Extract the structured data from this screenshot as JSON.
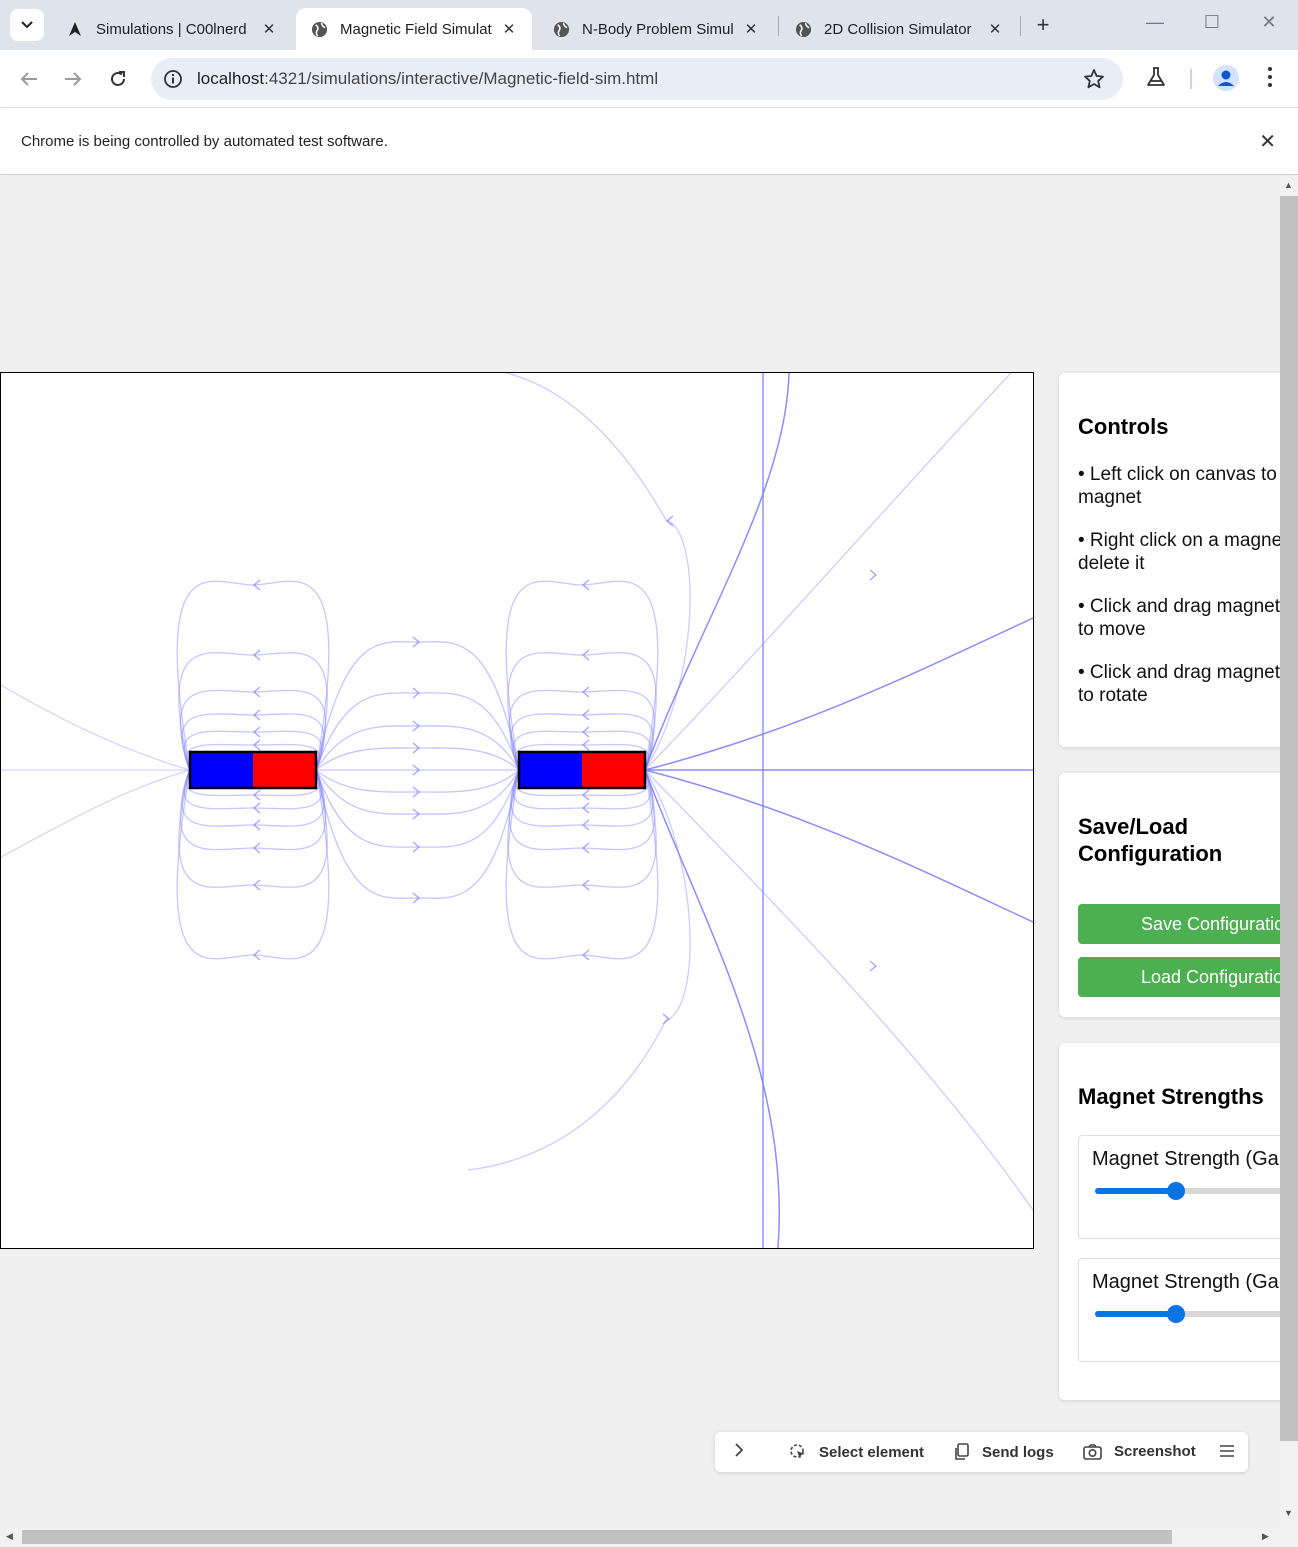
{
  "browser": {
    "tabs": [
      {
        "title": "Simulations | C00lnerd",
        "icon": "site-logo-icon",
        "active": false
      },
      {
        "title": "Magnetic Field Simulati",
        "icon": "globe-icon",
        "active": true
      },
      {
        "title": "N-Body Problem Simula",
        "icon": "globe-icon",
        "active": false
      },
      {
        "title": "2D Collision Simulator",
        "icon": "globe-icon",
        "active": false
      }
    ],
    "url_host": "localhost",
    "url_path": ":4321/simulations/interactive/Magnetic-field-sim.html",
    "infobar_message": "Chrome is being controlled by automated test software."
  },
  "controls": {
    "title": "Controls",
    "instructions": [
      [
        "• Left click on canvas to",
        "magnet"
      ],
      [
        "• Right click on a magnet",
        "delete it"
      ],
      [
        "• Click and drag magnet",
        "to move"
      ],
      [
        "• Click and drag magnet",
        "to rotate"
      ]
    ]
  },
  "save_load": {
    "title_line1": "Save/Load",
    "title_line2": "Configuration",
    "save_label": "Save Configuration",
    "load_label": "Load Configuration"
  },
  "strengths": {
    "title": "Magnet Strengths",
    "magnets": [
      {
        "label": "Magnet Strength (Gauss)",
        "fraction": 0.37
      },
      {
        "label": "Magnet Strength (Gauss)",
        "fraction": 0.37
      }
    ]
  },
  "devbar": {
    "select_label": "Select element",
    "logs_label": "Send logs",
    "screenshot_label": "Screenshot"
  },
  "colors": {
    "north_pole": "#0000ff",
    "south_pole": "#ff0000",
    "field_line": "#8080ff",
    "button_green": "#4caf50",
    "slider_accent": "#0b74e5"
  }
}
